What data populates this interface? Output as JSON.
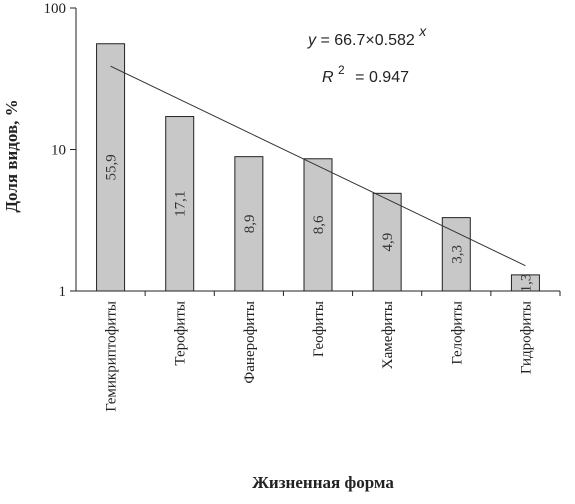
{
  "chart_data": {
    "type": "bar",
    "yscale": "log",
    "ylim": [
      1,
      100
    ],
    "yticks": [
      "1",
      "10",
      "100"
    ],
    "ylabel": "Доля видов, %",
    "xlabel": "Жизненная форма",
    "categories": [
      "Гемикриптофиты",
      "Терофиты",
      "Фанерофиты",
      "Геофиты",
      "Хамефиты",
      "Гелофиты",
      "Гидрофиты"
    ],
    "values": [
      55.9,
      17.1,
      8.9,
      8.6,
      4.9,
      3.3,
      1.3
    ],
    "value_labels": [
      "55,9",
      "17,1",
      "8,9",
      "8,6",
      "4,9",
      "3,3",
      "1,3"
    ],
    "trendline": {
      "type": "exponential",
      "a": 66.7,
      "b": 0.582,
      "equation_prefix": "y = 66.7×0.582",
      "equation_exponent": "x",
      "r2_label": "R",
      "r2_exponent": "2",
      "r2_value": "= 0.947"
    },
    "bar_color": "#c8c8c8",
    "bar_stroke": "#222222",
    "line_color": "#333333"
  }
}
